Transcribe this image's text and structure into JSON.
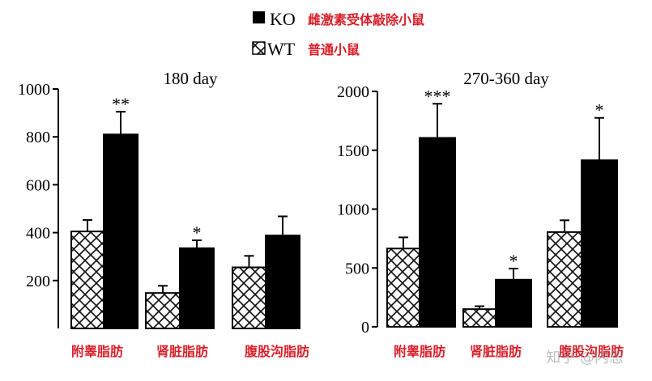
{
  "legend": {
    "ko_label": "KO",
    "ko_desc": "雌激素受体敲除小鼠",
    "wt_label": "WT",
    "wt_desc": "普通小鼠"
  },
  "watermark": "知乎 @内恩",
  "colors": {
    "ko_fill": "#000000",
    "wt_pattern": "#111111",
    "category_text": "#d8202a",
    "legend_text": "#d8202a"
  },
  "chart_data": [
    {
      "type": "bar",
      "title": "180 day",
      "categories": [
        "附睾脂肪",
        "肾脏脂肪",
        "腹股沟脂肪"
      ],
      "series": [
        {
          "name": "WT",
          "values": [
            405,
            148,
            255
          ],
          "errors": [
            48,
            30,
            48
          ]
        },
        {
          "name": "KO",
          "values": [
            810,
            335,
            388
          ],
          "errors": [
            95,
            33,
            80
          ]
        }
      ],
      "significance": [
        "**",
        "*",
        ""
      ],
      "ylim": [
        0,
        1000
      ],
      "yticks": [
        200,
        400,
        600,
        800,
        1000
      ],
      "xlabel": "",
      "ylabel": ""
    },
    {
      "type": "bar",
      "title": "270-360 day",
      "categories": [
        "附睾脂肪",
        "肾脏脂肪",
        "腹股沟脂肪"
      ],
      "series": [
        {
          "name": "WT",
          "values": [
            665,
            150,
            805
          ],
          "errors": [
            95,
            25,
            100
          ]
        },
        {
          "name": "KO",
          "values": [
            1605,
            400,
            1415
          ],
          "errors": [
            290,
            95,
            360
          ]
        }
      ],
      "significance": [
        "***",
        "*",
        "*"
      ],
      "ylim": [
        0,
        2000
      ],
      "yticks": [
        0,
        500,
        1000,
        1500,
        2000
      ],
      "xlabel": "",
      "ylabel": ""
    }
  ]
}
